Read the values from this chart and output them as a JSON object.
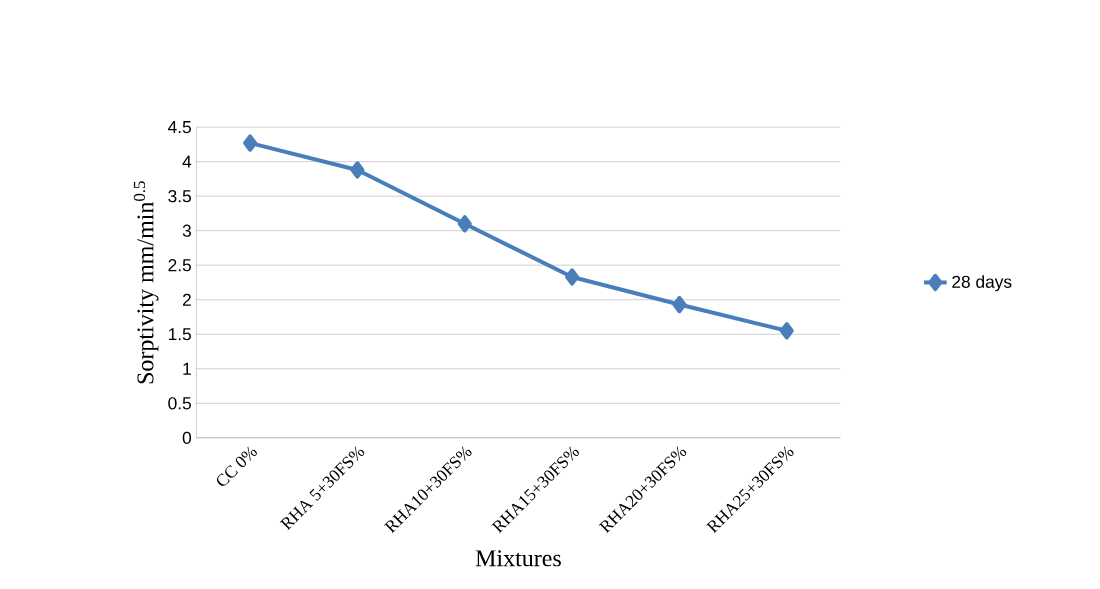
{
  "chart_data": {
    "type": "line",
    "xlabel": "Mixtures",
    "ylabel": "Sorptivity mm/min$^{0.5}$",
    "categories": [
      "CC 0%",
      "RHA 5+30FS%",
      "RHA10+30FS%",
      "RHA15+30FS%",
      "RHA20+30FS%",
      "RHA25+30FS%"
    ],
    "series": [
      {
        "name": "28 days",
        "color": "#4a7ebb",
        "values": [
          4.27,
          3.88,
          3.1,
          2.33,
          1.93,
          1.55
        ]
      }
    ],
    "ylim": [
      0,
      4.5
    ],
    "yticks": [
      0,
      0.5,
      1,
      1.5,
      2,
      2.5,
      3,
      3.5,
      4,
      4.5
    ],
    "grid": "y",
    "legend": "right",
    "marker": "diamond",
    "line_style": "solid"
  }
}
